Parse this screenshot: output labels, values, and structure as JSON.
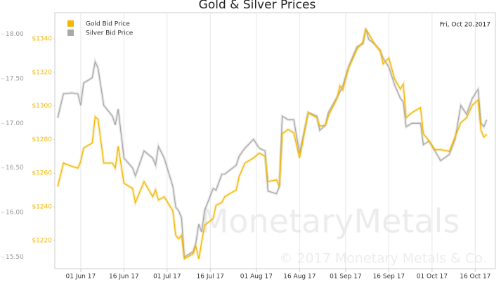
{
  "chart_data": {
    "type": "line",
    "title": "Gold & Silver Prices",
    "date_label": "Fri, Oct 20.2017",
    "watermark": "MonetaryMetals",
    "copyright": "© 2017 Monetary Metals & Co.",
    "grid": "x",
    "legend": "top-left",
    "x": [
      "2017-05-24",
      "2017-05-26",
      "2017-05-29",
      "2017-05-31",
      "2017-06-01",
      "2017-06-02",
      "2017-06-05",
      "2017-06-06",
      "2017-06-07",
      "2017-06-09",
      "2017-06-12",
      "2017-06-13",
      "2017-06-14",
      "2017-06-16",
      "2017-06-19",
      "2017-06-20",
      "2017-06-23",
      "2017-06-26",
      "2017-06-27",
      "2017-06-28",
      "2017-06-30",
      "2017-07-03",
      "2017-07-04",
      "2017-07-05",
      "2017-07-06",
      "2017-07-07",
      "2017-07-10",
      "2017-07-11",
      "2017-07-12",
      "2017-07-13",
      "2017-07-14",
      "2017-07-17",
      "2017-07-18",
      "2017-07-20",
      "2017-07-21",
      "2017-07-25",
      "2017-07-26",
      "2017-07-28",
      "2017-07-31",
      "2017-08-02",
      "2017-08-04",
      "2017-08-05",
      "2017-08-08",
      "2017-08-09",
      "2017-08-10",
      "2017-08-12",
      "2017-08-14",
      "2017-08-16",
      "2017-08-19",
      "2017-08-22",
      "2017-08-23",
      "2017-08-25",
      "2017-08-26",
      "2017-08-29",
      "2017-08-30",
      "2017-08-31",
      "2017-09-02",
      "2017-09-04",
      "2017-09-05",
      "2017-09-07",
      "2017-09-08",
      "2017-09-09",
      "2017-09-11",
      "2017-09-13",
      "2017-09-14",
      "2017-09-16",
      "2017-09-18",
      "2017-09-20",
      "2017-09-21",
      "2017-09-22",
      "2017-09-24",
      "2017-09-27",
      "2017-09-28",
      "2017-09-30",
      "2017-10-02",
      "2017-10-04",
      "2017-10-07",
      "2017-10-09",
      "2017-10-11",
      "2017-10-13",
      "2017-10-15",
      "2017-10-17",
      "2017-10-18",
      "2017-10-19",
      "2017-10-20"
    ],
    "xlim": [
      "2017-05-23",
      "2017-10-23"
    ],
    "xticks": [
      {
        "value": "2017-06-01",
        "label": "01 Jun 17"
      },
      {
        "value": "2017-06-16",
        "label": "16 Jun 17"
      },
      {
        "value": "2017-07-01",
        "label": "01 Jul 17"
      },
      {
        "value": "2017-07-16",
        "label": "16 Jul 17"
      },
      {
        "value": "2017-08-01",
        "label": "01 Aug 17"
      },
      {
        "value": "2017-08-16",
        "label": "16 Aug 17"
      },
      {
        "value": "2017-09-01",
        "label": "01 Sep 17"
      },
      {
        "value": "2017-09-16",
        "label": "16 Sep 17"
      },
      {
        "value": "2017-10-01",
        "label": "01 Oct 17"
      },
      {
        "value": "2017-10-16",
        "label": "16 Oct 17"
      }
    ],
    "ylim": [
      15.37,
      18.24
    ],
    "yticks": [
      {
        "value": 15.5,
        "label": "15.50"
      },
      {
        "value": 16,
        "label": "16.00"
      },
      {
        "value": 16.5,
        "label": "16.50"
      },
      {
        "value": 17,
        "label": "17.00"
      },
      {
        "value": 17.5,
        "label": "17.50"
      },
      {
        "value": 18,
        "label": "18.00"
      }
    ],
    "y2lim": [
      1203.2,
      1355.5
    ],
    "y2ticks": [
      {
        "value": 1220,
        "label": "$1220"
      },
      {
        "value": 1240,
        "label": "$1240"
      },
      {
        "value": 1260,
        "label": "$1260"
      },
      {
        "value": 1280,
        "label": "$1280"
      },
      {
        "value": 1300,
        "label": "$1300"
      },
      {
        "value": 1320,
        "label": "$1320"
      },
      {
        "value": 1340,
        "label": "$1340"
      }
    ],
    "series": [
      {
        "name": "Gold Bid Price",
        "color": "#f2b705",
        "axis": "y2",
        "values": [
          1252,
          1266,
          1264,
          1263,
          1267,
          1275,
          1278,
          1293.5,
          1292,
          1266,
          1266,
          1263,
          1276,
          1254,
          1251,
          1242.5,
          1255,
          1246,
          1250,
          1244,
          1246,
          1237.5,
          1223,
          1221,
          1223,
          1209,
          1212,
          1216.5,
          1209,
          1219,
          1229,
          1233,
          1241,
          1242.5,
          1246,
          1250,
          1258,
          1266,
          1269,
          1272,
          1270,
          1255,
          1256,
          1252,
          1283.5,
          1286,
          1284,
          1269,
          1296,
          1293,
          1288,
          1288.5,
          1294,
          1304.5,
          1312,
          1309.5,
          1322.5,
          1330,
          1334,
          1338,
          1345.5,
          1343,
          1337,
          1333,
          1325,
          1328.5,
          1316,
          1310,
          1313,
          1293,
          1296,
          1299,
          1283.5,
          1279,
          1274,
          1274,
          1273,
          1281.5,
          1290,
          1293,
          1300.5,
          1303.5,
          1285.5,
          1281.5,
          1283
        ]
      },
      {
        "name": "Silver Bid Price",
        "color": "#a9a9a9",
        "axis": "y",
        "values": [
          17.06,
          17.33,
          17.34,
          17.33,
          17.2,
          17.45,
          17.51,
          17.69,
          17.62,
          17.2,
          17.08,
          16.98,
          17.16,
          16.61,
          16.5,
          16.41,
          16.69,
          16.61,
          16.53,
          16.74,
          16.61,
          16.29,
          16.06,
          16.02,
          15.94,
          15.5,
          15.56,
          15.66,
          15.87,
          15.78,
          16.02,
          16.27,
          16.25,
          16.43,
          16.43,
          16.53,
          16.63,
          16.72,
          16.82,
          16.72,
          16.69,
          16.24,
          16.21,
          16.29,
          17.08,
          17.04,
          17.04,
          16.66,
          17.12,
          17.08,
          16.92,
          16.98,
          17.12,
          17.29,
          17.35,
          17.42,
          17.63,
          17.79,
          17.86,
          17.89,
          18.06,
          17.94,
          17.89,
          17.81,
          17.73,
          17.63,
          17.43,
          17.28,
          17.24,
          16.96,
          17,
          17,
          16.76,
          16.8,
          16.69,
          16.58,
          16.65,
          16.82,
          17.2,
          17.1,
          17.28,
          17.38,
          17,
          16.96,
          17.04
        ]
      }
    ]
  }
}
